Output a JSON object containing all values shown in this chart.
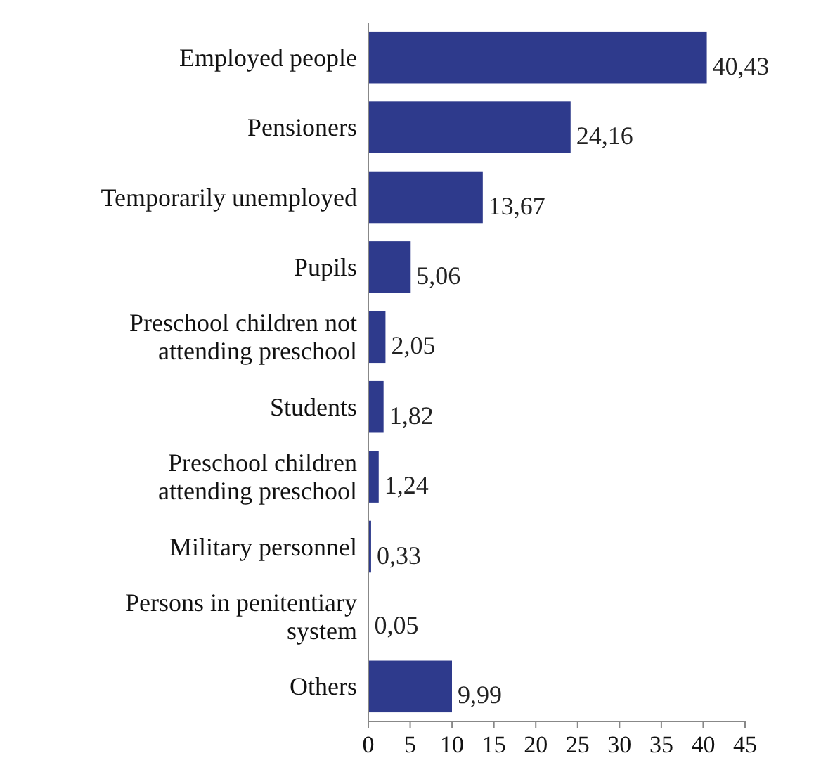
{
  "chart_data": {
    "type": "bar",
    "orientation": "horizontal",
    "categories": [
      "Employed people",
      "Pensioners",
      "Temporarily unemployed",
      "Pupils",
      "Preschool children not attending preschool",
      "Students",
      "Preschool children attending preschool",
      "Military personnel",
      "Persons in penitentiary system",
      "Others"
    ],
    "values": [
      40.43,
      24.16,
      13.67,
      5.06,
      2.05,
      1.82,
      1.24,
      0.33,
      0.05,
      9.99
    ],
    "value_labels": [
      "40,43",
      "24,16",
      "13,67",
      "5,06",
      "2,05",
      "1,82",
      "1,24",
      "0,33",
      "0,05",
      "9,99"
    ],
    "color": "#2e3a8c",
    "xlim": [
      0,
      45
    ],
    "xticks": [
      0,
      5,
      10,
      15,
      20,
      25,
      30,
      35,
      40,
      45
    ],
    "grid": false
  }
}
